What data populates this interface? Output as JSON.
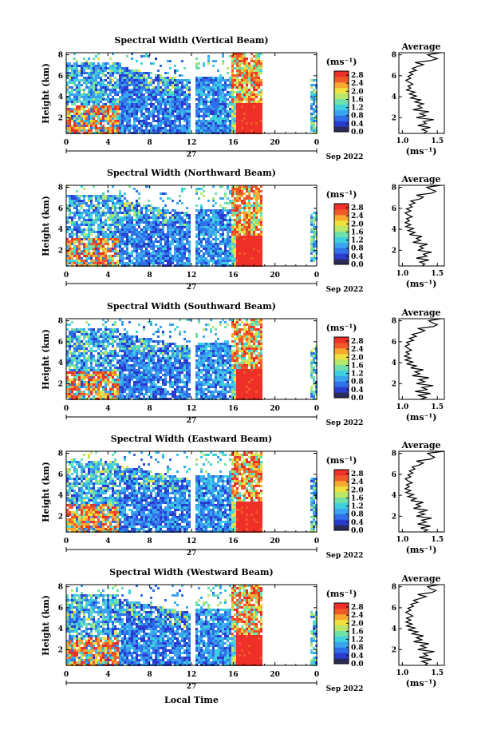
{
  "chart_data": {
    "type": "heatmap",
    "x_label": "Local Time",
    "x_ticks": [
      "0",
      "4",
      "8",
      "12",
      "16",
      "20",
      "0"
    ],
    "x_range": [
      0,
      24
    ],
    "date_day": "27",
    "date_month": "Sep 2022",
    "y_label": "Height (km)",
    "y_ticks": [
      "2",
      "4",
      "6",
      "8"
    ],
    "y_range": [
      0.5,
      8.2
    ],
    "colorbar_unit": "(ms⁻¹)",
    "colorbar_ticks": [
      "0.0",
      "0.4",
      "0.8",
      "1.2",
      "1.6",
      "2.0",
      "2.4",
      "2.8"
    ],
    "colorbar_range": [
      0.0,
      3.0
    ],
    "colors": [
      "#2b2b5a",
      "#2a3bcf",
      "#2f6fe8",
      "#3aa4f0",
      "#3fd0e0",
      "#6fe0a8",
      "#b8e86a",
      "#f0e040",
      "#f8a830",
      "#f05a28",
      "#ee3028"
    ],
    "profile_title": "Average",
    "profile_xlabel": "(ms⁻¹)",
    "profile_xticks": [
      "1.0",
      "1.5"
    ],
    "profile_xrange": [
      0.95,
      1.6
    ],
    "panels": [
      {
        "title": "Spectral Width (Vertical Beam)",
        "profile": [
          1.3,
          1.35,
          1.28,
          1.4,
          1.22,
          1.34,
          1.3,
          1.45,
          1.2,
          1.33,
          1.25,
          1.38,
          1.15,
          1.28,
          1.22,
          1.3,
          1.18,
          1.26,
          1.12,
          1.2,
          1.1,
          1.18,
          1.06,
          1.12,
          1.08,
          1.15,
          1.1,
          1.05,
          1.12,
          1.08,
          1.15,
          1.1,
          1.2,
          1.14,
          1.22,
          1.3,
          1.18,
          1.4,
          1.5,
          1.42,
          1.36,
          1.55
        ]
      },
      {
        "title": "Spectral Width (Northward Beam)",
        "profile": [
          1.28,
          1.32,
          1.25,
          1.38,
          1.2,
          1.35,
          1.3,
          1.42,
          1.22,
          1.3,
          1.25,
          1.36,
          1.15,
          1.26,
          1.2,
          1.28,
          1.1,
          1.18,
          1.08,
          1.16,
          1.05,
          1.12,
          1.04,
          1.1,
          1.06,
          1.14,
          1.08,
          1.04,
          1.12,
          1.06,
          1.14,
          1.1,
          1.18,
          1.12,
          1.25,
          1.3,
          1.2,
          1.42,
          1.48,
          1.4,
          1.35,
          1.55
        ]
      },
      {
        "title": "Spectral Width (Southward Beam)",
        "profile": [
          1.26,
          1.34,
          1.22,
          1.4,
          1.18,
          1.36,
          1.28,
          1.44,
          1.2,
          1.32,
          1.24,
          1.38,
          1.14,
          1.25,
          1.18,
          1.3,
          1.12,
          1.2,
          1.06,
          1.15,
          1.04,
          1.12,
          1.03,
          1.1,
          1.05,
          1.13,
          1.08,
          1.04,
          1.1,
          1.06,
          1.16,
          1.1,
          1.2,
          1.14,
          1.26,
          1.32,
          1.22,
          1.44,
          1.5,
          1.42,
          1.38,
          1.55
        ]
      },
      {
        "title": "Spectral Width (Eastward Beam)",
        "profile": [
          1.3,
          1.36,
          1.26,
          1.4,
          1.22,
          1.34,
          1.28,
          1.42,
          1.2,
          1.32,
          1.24,
          1.36,
          1.16,
          1.26,
          1.2,
          1.3,
          1.12,
          1.2,
          1.08,
          1.16,
          1.05,
          1.12,
          1.04,
          1.1,
          1.06,
          1.14,
          1.08,
          1.04,
          1.12,
          1.08,
          1.15,
          1.1,
          1.18,
          1.14,
          1.24,
          1.3,
          1.2,
          1.4,
          1.46,
          1.4,
          1.36,
          1.6
        ]
      },
      {
        "title": "Spectral Width (Westward Beam)",
        "profile": [
          1.32,
          1.36,
          1.28,
          1.42,
          1.24,
          1.36,
          1.3,
          1.46,
          1.22,
          1.34,
          1.26,
          1.38,
          1.16,
          1.28,
          1.2,
          1.3,
          1.14,
          1.22,
          1.08,
          1.18,
          1.06,
          1.14,
          1.05,
          1.12,
          1.06,
          1.15,
          1.1,
          1.05,
          1.12,
          1.08,
          1.16,
          1.12,
          1.22,
          1.16,
          1.26,
          1.34,
          1.22,
          1.42,
          1.48,
          1.4,
          1.36,
          1.52
        ]
      }
    ]
  }
}
